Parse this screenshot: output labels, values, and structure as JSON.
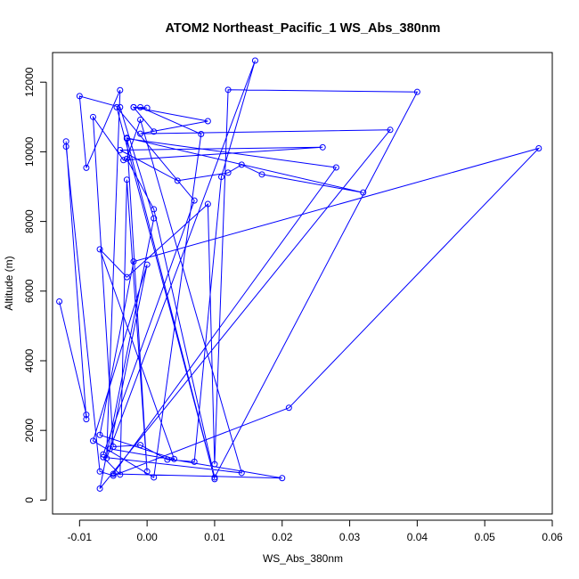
{
  "chart_data": {
    "type": "line",
    "title": "ATOM2 Northeast_Pacific_1 WS_Abs_380nm",
    "xlabel": "WS_Abs_380nm",
    "ylabel": "Altitude (m)",
    "xlim": [
      -0.014,
      0.06
    ],
    "ylim": [
      -400,
      12850
    ],
    "x_ticks": [
      -0.01,
      0.0,
      0.01,
      0.02,
      0.03,
      0.04,
      0.05,
      0.06
    ],
    "x_tick_labels": [
      "-0.01",
      "0.00",
      "0.01",
      "0.02",
      "0.03",
      "0.04",
      "0.05",
      "0.06"
    ],
    "y_ticks": [
      0,
      2000,
      4000,
      6000,
      8000,
      10000,
      12000
    ],
    "y_tick_labels": [
      "0",
      "2000",
      "4000",
      "6000",
      "8000",
      "10000",
      "12000"
    ],
    "grid": false,
    "line_color": "#0000ff",
    "marker": "open-circle",
    "series": [
      {
        "x": [
          -0.013,
          -0.009,
          -0.009,
          -0.012,
          -0.012,
          -0.007,
          -0.005,
          0.021,
          0.058,
          -0.002,
          -0.007,
          0.004,
          -0.007,
          -0.003,
          0.009,
          0.01,
          0.012,
          0.04,
          0.01,
          0.001,
          -0.003,
          -0.001,
          0.014,
          -0.0065,
          -0.004,
          -0.003,
          0.0,
          -0.003,
          0.032,
          0.017,
          0.014,
          0.012,
          0.0045,
          -0.004,
          0.026,
          -0.0035,
          -0.008,
          -0.005,
          -0.001,
          0.003,
          0.007,
          0.011,
          0.016,
          -0.006,
          -0.004,
          -0.009,
          -0.01,
          -0.004,
          0.001,
          -0.007,
          0.036,
          -0.001,
          0.009,
          -0.002,
          0.001,
          -0.002,
          0.0,
          -0.001,
          0.008,
          0.001,
          -0.008,
          0.0,
          -0.0055,
          0.02,
          -0.005,
          0.028,
          -0.003,
          0.01,
          -0.0045,
          0.007,
          -0.0065
        ],
        "y": [
          5700,
          2450,
          2320,
          10300,
          10150,
          820,
          700,
          2650,
          10100,
          6850,
          1870,
          1180,
          7200,
          6400,
          8500,
          1030,
          11780,
          11720,
          650,
          8350,
          9800,
          10920,
          780,
          1230,
          730,
          9200,
          820,
          10400,
          8830,
          9350,
          9630,
          9400,
          9170,
          10050,
          10130,
          9760,
          11000,
          1530,
          1580,
          1160,
          1100,
          9280,
          12620,
          1200,
          11770,
          9540,
          11600,
          11280,
          8090,
          330,
          10630,
          10520,
          10880,
          11280,
          10580,
          11280,
          11260,
          11280,
          10510,
          650,
          1700,
          6760,
          1470,
          630,
          750,
          9550,
          10380,
          600,
          11280,
          8600,
          1310
        ]
      }
    ]
  }
}
